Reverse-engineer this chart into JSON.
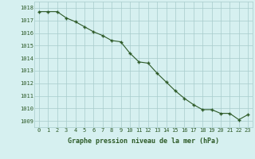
{
  "hours": [
    0,
    1,
    2,
    3,
    4,
    5,
    6,
    7,
    8,
    9,
    10,
    11,
    12,
    13,
    14,
    15,
    16,
    17,
    18,
    19,
    20,
    21,
    22,
    23
  ],
  "pressure": [
    1017.7,
    1017.7,
    1017.7,
    1017.2,
    1016.9,
    1016.5,
    1016.1,
    1015.8,
    1015.4,
    1015.3,
    1014.4,
    1013.7,
    1013.6,
    1012.8,
    1012.1,
    1011.4,
    1010.8,
    1010.3,
    1009.9,
    1009.9,
    1009.6,
    1009.6,
    1009.1,
    1009.5
  ],
  "ylim": [
    1008.5,
    1018.5
  ],
  "yticks": [
    1009,
    1010,
    1011,
    1012,
    1013,
    1014,
    1015,
    1016,
    1017,
    1018
  ],
  "xlabel": "Graphe pression niveau de la mer (hPa)",
  "line_color": "#2d5a27",
  "marker_color": "#2d5a27",
  "bg_color": "#d6f0f0",
  "grid_color": "#a8cccc",
  "tick_color": "#2d5a27",
  "xlabel_color": "#2d5a27",
  "tick_fontsize": 5.0,
  "xlabel_fontsize": 6.0
}
